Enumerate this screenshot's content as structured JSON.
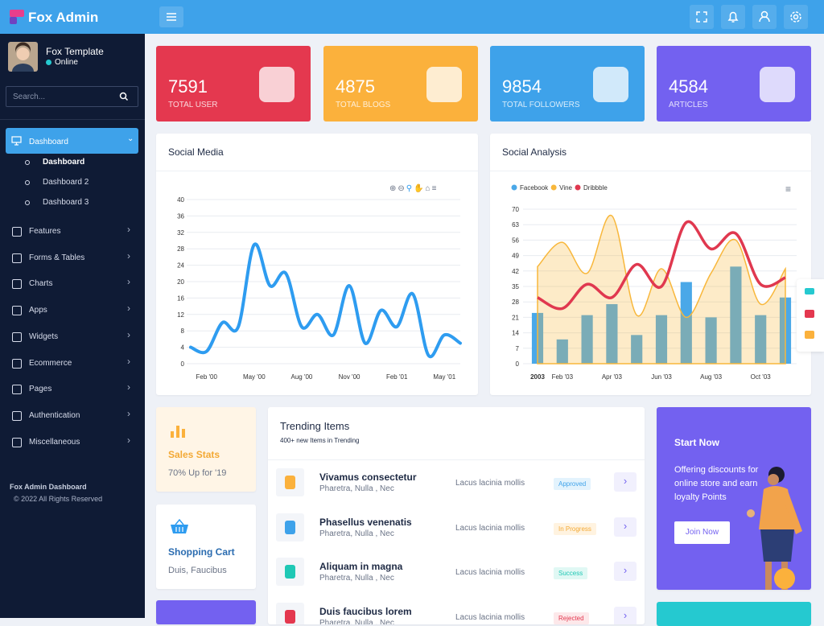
{
  "header": {
    "brand": "Fox Admin"
  },
  "sidebar": {
    "user": {
      "name": "Fox Template",
      "status": "Online"
    },
    "search_placeholder": "Search...",
    "active": {
      "label": "Dashboard",
      "children": [
        "Dashboard",
        "Dashboard 2",
        "Dashboard 3"
      ]
    },
    "menu": [
      "Features",
      "Forms & Tables",
      "Charts",
      "Apps",
      "Widgets",
      "Ecommerce",
      "Pages",
      "Authentication",
      "Miscellaneous"
    ],
    "footer": {
      "title": "Fox Admin Dashboard",
      "copyright": "© 2022 All Rights Reserved"
    }
  },
  "stats": [
    {
      "value": 7591,
      "label": "TOTAL USER",
      "color": "#e4384f"
    },
    {
      "value": 4875,
      "label": "TOTAL BLOGS",
      "color": "#fbb13c"
    },
    {
      "value": 9854,
      "label": "TOTAL FOLLOWERS",
      "color": "#3ea2ea"
    },
    {
      "value": 4584,
      "label": "ARTICLES",
      "color": "#7361f0"
    }
  ],
  "chart_data": [
    {
      "type": "line",
      "title": "Social Media",
      "categories": [
        null,
        "Feb '00",
        null,
        null,
        "May '00",
        null,
        null,
        "Aug '00",
        null,
        null,
        "Nov '00",
        null,
        null,
        "Feb '01",
        null,
        null,
        "May '01",
        null
      ],
      "series": [
        {
          "name": "Social Media",
          "color": "#2e9cf0",
          "values": [
            4,
            3,
            10,
            9,
            29,
            19,
            22,
            9,
            12,
            7,
            19,
            5,
            13,
            9,
            17,
            2,
            7,
            5
          ]
        }
      ],
      "ylim": [
        0,
        40
      ],
      "yticks": [
        0,
        4,
        8,
        12,
        16,
        20,
        24,
        28,
        32,
        36,
        40
      ],
      "grid": true
    },
    {
      "type": "mixed",
      "title": "Social Analysis",
      "categories": [
        "2003",
        "Feb '03",
        null,
        "Apr '03",
        null,
        "Jun '03",
        null,
        "Aug '03",
        null,
        "Oct '03",
        null
      ],
      "series": [
        {
          "name": "Facebook",
          "type": "bar",
          "color": "#4aa8e8",
          "values": [
            23,
            11,
            22,
            27,
            13,
            22,
            37,
            21,
            44,
            22,
            30
          ]
        },
        {
          "name": "Vine",
          "type": "area",
          "color": "#f8b73b",
          "values": [
            44,
            55,
            41,
            67,
            22,
            43,
            21,
            41,
            56,
            27,
            43
          ]
        },
        {
          "name": "Dribbble",
          "type": "line",
          "color": "#e0384f",
          "values": [
            30,
            25,
            36,
            30,
            45,
            35,
            64,
            52,
            59,
            36,
            39
          ]
        }
      ],
      "ylim": [
        0,
        70
      ],
      "yticks": [
        0,
        7,
        14,
        21,
        28,
        35,
        42,
        49,
        56,
        63,
        70
      ],
      "grid": true,
      "legend": "top-left"
    }
  ],
  "sales": {
    "title": "Sales Stats",
    "text": "70% Up for '19"
  },
  "cart": {
    "title": "Shopping Cart",
    "text": "Duis, Faucibus"
  },
  "trending": {
    "title": "Trending Items",
    "subtitle": "400+ new Items in Trending",
    "items": [
      {
        "title": "Vivamus consectetur",
        "subtitle": "Pharetra, Nulla , Nec",
        "category": "Lacus lacinia mollis",
        "status": "Approved"
      },
      {
        "title": "Phasellus venenatis",
        "subtitle": "Pharetra, Nulla , Nec",
        "category": "Lacus lacinia mollis",
        "status": "In Progress"
      },
      {
        "title": "Aliquam in magna",
        "subtitle": "Pharetra, Nulla , Nec",
        "category": "Lacus lacinia mollis",
        "status": "Success"
      },
      {
        "title": "Duis faucibus lorem",
        "subtitle": "Pharetra, Nulla , Nec",
        "category": "Lacus lacinia mollis",
        "status": "Rejected"
      }
    ]
  },
  "promo": {
    "title": "Start Now",
    "text": "Offering discounts for online store and earn loyalty Points",
    "button": "Join Now"
  }
}
